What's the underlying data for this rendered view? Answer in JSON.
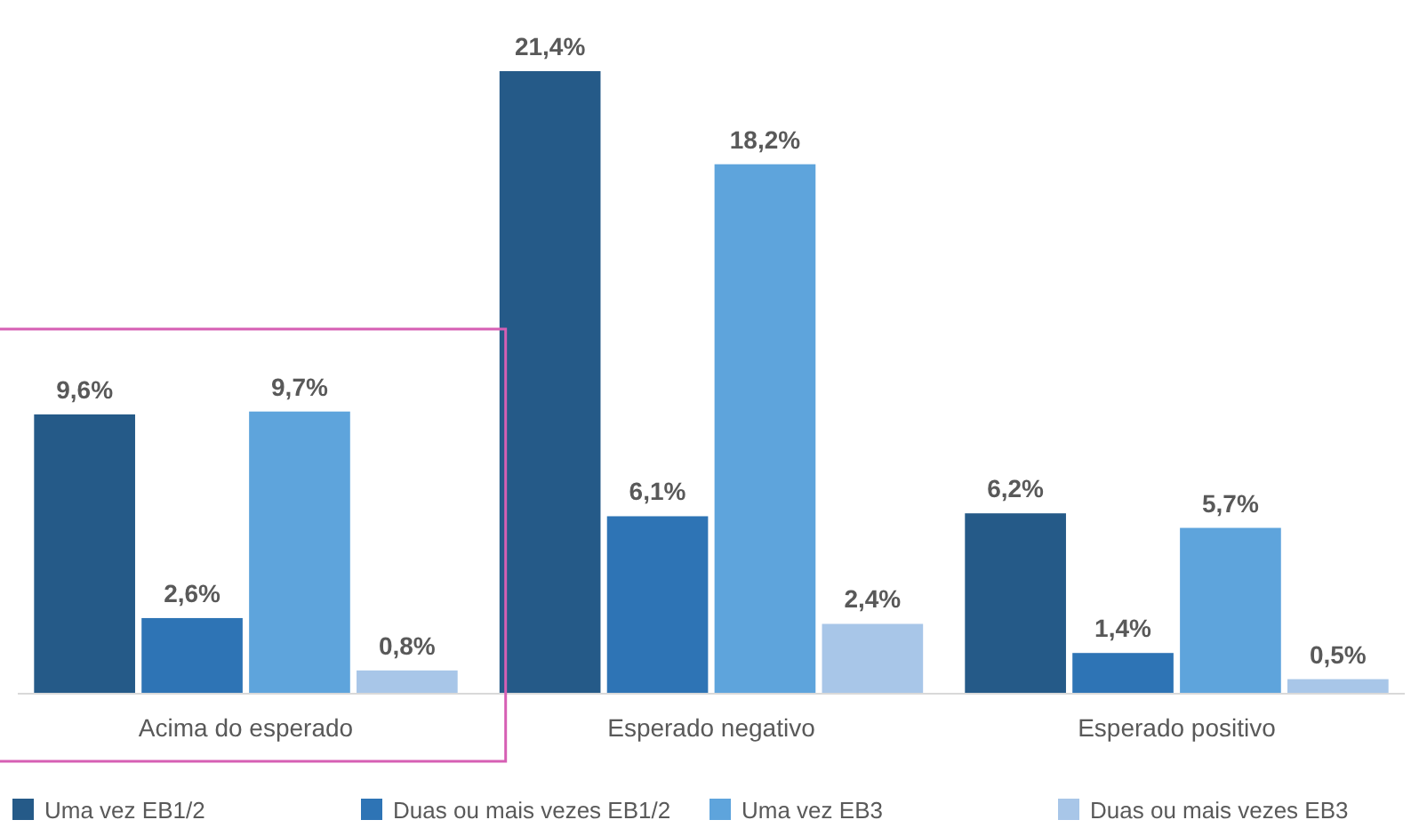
{
  "chart_data": {
    "type": "bar",
    "categories": [
      "Acima do esperado",
      "Esperado negativo",
      "Esperado positivo"
    ],
    "series": [
      {
        "name": "Uma vez EB1/2",
        "color": "#255a88",
        "values": [
          9.6,
          21.4,
          6.2
        ],
        "value_labels": [
          "9,6%",
          "21,4%",
          "6,2%"
        ]
      },
      {
        "name": "Duas ou mais vezes EB1/2",
        "color": "#2e74b5",
        "values": [
          2.6,
          6.1,
          1.4
        ],
        "value_labels": [
          "2,6%",
          "6,1%",
          "1,4%"
        ]
      },
      {
        "name": "Uma vez EB3",
        "color": "#5ea4dc",
        "values": [
          9.7,
          18.2,
          5.7
        ],
        "value_labels": [
          "9,7%",
          "18,2%",
          "5,7%"
        ]
      },
      {
        "name": "Duas ou mais vezes EB3",
        "color": "#a8c6e8",
        "values": [
          0.8,
          2.4,
          0.5
        ],
        "value_labels": [
          "0,8%",
          "2,4%",
          "0,5%"
        ]
      }
    ],
    "legend": "bottom"
  }
}
